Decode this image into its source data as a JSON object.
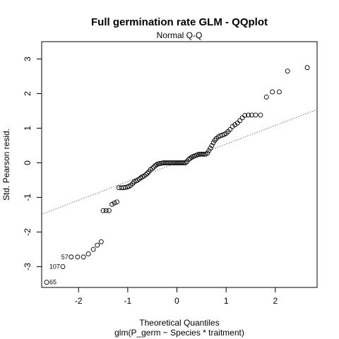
{
  "chart_data": {
    "type": "scatter",
    "title": "Full germination rate GLM - QQplot",
    "subtitle": "Normal Q-Q",
    "xlabel": "Theoretical Quantiles",
    "sublabel": "glm(P_germ ~ Species * traitment)",
    "ylabel": "Std. Pearson resid.",
    "xlim": [
      -2.75,
      2.85
    ],
    "ylim": [
      -3.6,
      3.5
    ],
    "xticks": [
      "-2",
      "-1",
      "0",
      "1",
      "2"
    ],
    "yticks": [
      "-3",
      "-2",
      "-1",
      "0",
      "1",
      "2",
      "3"
    ],
    "grid": false,
    "reference_line": {
      "intercept": 0.0,
      "slope": 0.54,
      "style": "dotted"
    },
    "labeled_points": [
      {
        "label": "65",
        "x": -2.65,
        "y": -3.45
      },
      {
        "label": "107",
        "x": -2.32,
        "y": -3.0
      },
      {
        "label": "57",
        "x": -2.15,
        "y": -2.72
      }
    ],
    "points": [
      [
        -2.65,
        -3.45
      ],
      [
        -2.32,
        -3.0
      ],
      [
        -2.15,
        -2.72
      ],
      [
        -2.02,
        -2.72
      ],
      [
        -1.9,
        -2.72
      ],
      [
        -1.8,
        -2.63
      ],
      [
        -1.7,
        -2.5
      ],
      [
        -1.62,
        -2.38
      ],
      [
        -1.54,
        -2.28
      ],
      [
        -1.5,
        -1.38
      ],
      [
        -1.44,
        -1.38
      ],
      [
        -1.38,
        -1.38
      ],
      [
        -1.32,
        -1.2
      ],
      [
        -1.27,
        -1.16
      ],
      [
        -1.22,
        -1.13
      ],
      [
        -1.18,
        -0.72
      ],
      [
        -1.13,
        -0.72
      ],
      [
        -1.09,
        -0.72
      ],
      [
        -1.05,
        -0.71
      ],
      [
        -1.01,
        -0.7
      ],
      [
        -0.98,
        -0.68
      ],
      [
        -0.94,
        -0.65
      ],
      [
        -0.9,
        -0.6
      ],
      [
        -0.87,
        -0.55
      ],
      [
        -0.83,
        -0.52
      ],
      [
        -0.8,
        -0.5
      ],
      [
        -0.77,
        -0.47
      ],
      [
        -0.73,
        -0.43
      ],
      [
        -0.7,
        -0.4
      ],
      [
        -0.67,
        -0.38
      ],
      [
        -0.63,
        -0.34
      ],
      [
        -0.6,
        -0.3
      ],
      [
        -0.57,
        -0.26
      ],
      [
        -0.54,
        -0.2
      ],
      [
        -0.5,
        -0.16
      ],
      [
        -0.47,
        -0.12
      ],
      [
        -0.44,
        -0.08
      ],
      [
        -0.41,
        -0.05
      ],
      [
        -0.38,
        -0.03
      ],
      [
        -0.35,
        -0.02
      ],
      [
        -0.31,
        -0.01
      ],
      [
        -0.28,
        0.0
      ],
      [
        -0.25,
        0.0
      ],
      [
        -0.22,
        0.0
      ],
      [
        -0.19,
        0.0
      ],
      [
        -0.16,
        0.0
      ],
      [
        -0.13,
        0.0
      ],
      [
        -0.1,
        0.0
      ],
      [
        -0.07,
        0.0
      ],
      [
        -0.04,
        0.0
      ],
      [
        -0.01,
        0.0
      ],
      [
        0.02,
        0.0
      ],
      [
        0.05,
        0.0
      ],
      [
        0.08,
        0.0
      ],
      [
        0.11,
        0.0
      ],
      [
        0.14,
        0.0
      ],
      [
        0.17,
        0.0
      ],
      [
        0.2,
        0.03
      ],
      [
        0.24,
        0.1
      ],
      [
        0.27,
        0.13
      ],
      [
        0.3,
        0.16
      ],
      [
        0.33,
        0.18
      ],
      [
        0.36,
        0.2
      ],
      [
        0.4,
        0.22
      ],
      [
        0.43,
        0.24
      ],
      [
        0.46,
        0.25
      ],
      [
        0.49,
        0.25
      ],
      [
        0.52,
        0.25
      ],
      [
        0.55,
        0.25
      ],
      [
        0.58,
        0.25
      ],
      [
        0.62,
        0.28
      ],
      [
        0.65,
        0.35
      ],
      [
        0.68,
        0.42
      ],
      [
        0.71,
        0.5
      ],
      [
        0.74,
        0.58
      ],
      [
        0.77,
        0.65
      ],
      [
        0.8,
        0.7
      ],
      [
        0.84,
        0.75
      ],
      [
        0.88,
        0.78
      ],
      [
        0.92,
        0.8
      ],
      [
        0.96,
        0.82
      ],
      [
        1.0,
        0.85
      ],
      [
        1.04,
        0.9
      ],
      [
        1.08,
        0.96
      ],
      [
        1.13,
        1.05
      ],
      [
        1.18,
        1.1
      ],
      [
        1.23,
        1.15
      ],
      [
        1.28,
        1.22
      ],
      [
        1.33,
        1.3
      ],
      [
        1.38,
        1.37
      ],
      [
        1.45,
        1.38
      ],
      [
        1.52,
        1.38
      ],
      [
        1.6,
        1.38
      ],
      [
        1.7,
        1.38
      ],
      [
        1.82,
        1.9
      ],
      [
        1.94,
        2.05
      ],
      [
        2.08,
        2.05
      ],
      [
        2.25,
        2.65
      ],
      [
        2.65,
        2.75
      ]
    ]
  }
}
